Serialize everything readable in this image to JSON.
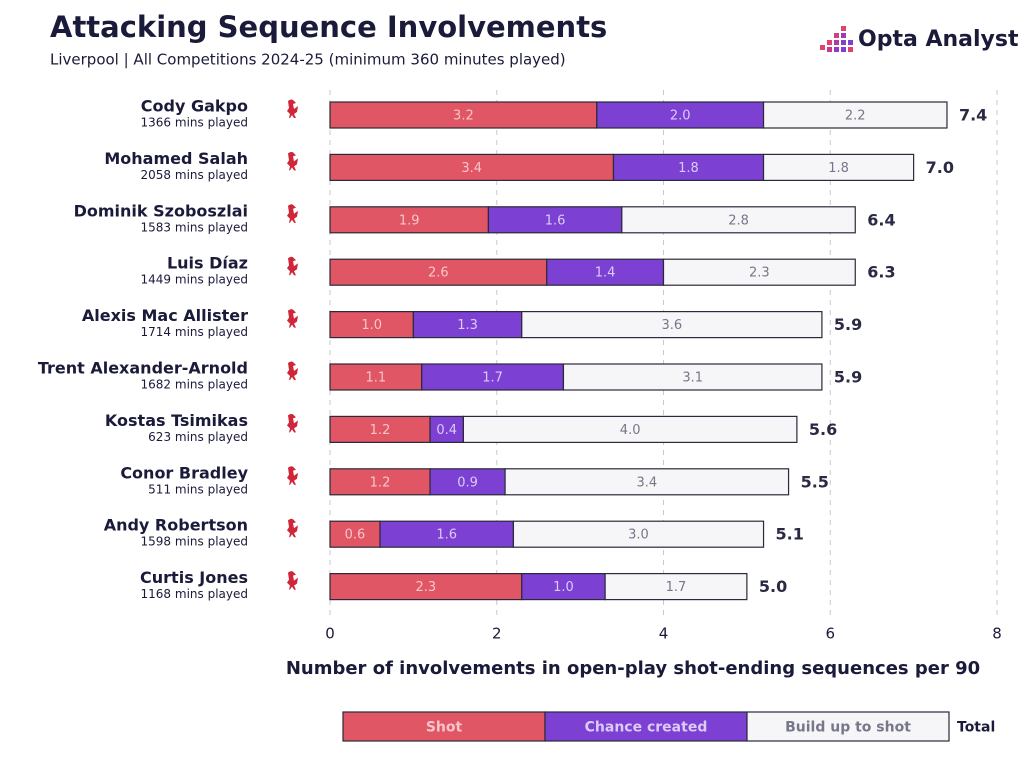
{
  "chart_data": {
    "type": "stacked_barh",
    "title": "Attacking Sequence Involvements",
    "subtitle": "Liverpool | All Competitions 2024-25 (minimum 360 minutes played)",
    "brand": "Opta Analyst",
    "xlabel": "Number of involvements in open-play shot-ending sequences per 90",
    "categories": [
      "Cody Gakpo",
      "Mohamed Salah",
      "Dominik Szoboszlai",
      "Luis Díaz",
      "Alexis Mac Allister",
      "Trent Alexander-Arnold",
      "Kostas Tsimikas",
      "Conor Bradley",
      "Andy Robertson",
      "Curtis Jones"
    ],
    "category_notes": [
      "1366 mins played",
      "2058 mins played",
      "1583 mins played",
      "1449 mins played",
      "1714 mins played",
      "1682 mins played",
      "623 mins played",
      "511 mins played",
      "1598 mins played",
      "1168 mins played"
    ],
    "series": [
      {
        "name": "Shot",
        "color": "#e05665",
        "text_color": "#f7c5cb",
        "values": [
          3.2,
          3.4,
          1.9,
          2.6,
          1.0,
          1.1,
          1.2,
          1.2,
          0.6,
          2.3
        ],
        "value_labels": [
          "3.2",
          "3.4",
          "1.9",
          "2.6",
          "1.0",
          "1.1",
          "1.2",
          "1.2",
          "0.6",
          "2.3"
        ]
      },
      {
        "name": "Chance created",
        "color": "#7c40d2",
        "text_color": "#dccbf6",
        "values": [
          2.0,
          1.8,
          1.6,
          1.4,
          1.3,
          1.7,
          0.4,
          0.9,
          1.6,
          1.0
        ],
        "value_labels": [
          "2.0",
          "1.8",
          "1.6",
          "1.4",
          "1.3",
          "1.7",
          "0.4",
          "0.9",
          "1.6",
          "1.0"
        ]
      },
      {
        "name": "Build up to shot",
        "color": "#f6f6f8",
        "text_color": "#77778a",
        "values": [
          2.2,
          1.8,
          2.8,
          2.3,
          3.6,
          3.1,
          4.0,
          3.4,
          3.0,
          1.7
        ],
        "value_labels": [
          "2.2",
          "1.8",
          "2.8",
          "2.3",
          "3.6",
          "3.1",
          "4.0",
          "3.4",
          "3.0",
          "1.7"
        ]
      }
    ],
    "total": {
      "name": "Total",
      "values": [
        7.4,
        7.0,
        6.4,
        6.3,
        5.9,
        5.9,
        5.6,
        5.5,
        5.1,
        5.0
      ],
      "value_labels": [
        "7.4",
        "7.0",
        "6.4",
        "6.3",
        "5.9",
        "5.9",
        "5.6",
        "5.5",
        "5.1",
        "5.0"
      ]
    },
    "xlim": [
      0,
      8
    ],
    "xticks": [
      0,
      2,
      4,
      6,
      8
    ],
    "grid": true
  }
}
